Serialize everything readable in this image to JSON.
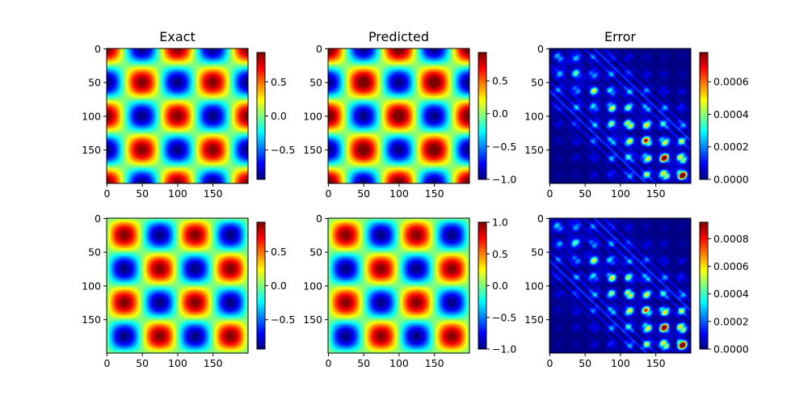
{
  "figure": {
    "colormap": "jet",
    "colormap_stops": [
      "#00007f",
      "#0000ff",
      "#007fff",
      "#00ffff",
      "#7fff7f",
      "#ffff00",
      "#ff7f00",
      "#ff0000",
      "#7f0000"
    ]
  },
  "chart_data": [
    {
      "type": "heatmap",
      "title": "Exact",
      "field": "cos(pi*x/50)*cos(pi*y/50)",
      "grid": [
        200,
        200
      ],
      "xlim": [
        0,
        199
      ],
      "ylim": [
        199,
        0
      ],
      "y_inverted": true,
      "xticks": [
        0,
        50,
        100,
        150
      ],
      "yticks": [
        0,
        50,
        100,
        150
      ],
      "xtick_labels": [
        "0",
        "50",
        "100",
        "150"
      ],
      "ytick_labels": [
        "0",
        "50",
        "100",
        "150"
      ],
      "clim": [
        -0.93,
        0.93
      ],
      "colorbar_ticks": [
        -0.5,
        0.0,
        0.5
      ],
      "colorbar_labels": [
        "−0.5",
        "0.0",
        "0.5"
      ]
    },
    {
      "type": "heatmap",
      "title": "Predicted",
      "field": "cos(pi*x/50)*cos(pi*y/50)",
      "grid": [
        200,
        200
      ],
      "xlim": [
        0,
        199
      ],
      "ylim": [
        199,
        0
      ],
      "y_inverted": true,
      "xticks": [
        0,
        50,
        100,
        150
      ],
      "yticks": [
        0,
        50,
        100,
        150
      ],
      "xtick_labels": [
        "0",
        "50",
        "100",
        "150"
      ],
      "ytick_labels": [
        "0",
        "50",
        "100",
        "150"
      ],
      "clim": [
        -1.0,
        0.93
      ],
      "colorbar_ticks": [
        -1.0,
        -0.5,
        0.0,
        0.5
      ],
      "colorbar_labels": [
        "−1.0",
        "−0.5",
        "0.0",
        "0.5"
      ]
    },
    {
      "type": "heatmap",
      "title": "Error",
      "field": "abs(exact - predicted)",
      "grid": [
        200,
        200
      ],
      "xlim": [
        0,
        199
      ],
      "ylim": [
        199,
        0
      ],
      "y_inverted": true,
      "xticks": [
        0,
        50,
        100,
        150
      ],
      "yticks": [
        0,
        50,
        100,
        150
      ],
      "xtick_labels": [
        "0",
        "50",
        "100",
        "150"
      ],
      "ytick_labels": [
        "0",
        "50",
        "100",
        "150"
      ],
      "clim": [
        0.0,
        0.00078
      ],
      "colorbar_ticks": [
        0.0,
        0.0002,
        0.0004,
        0.0006
      ],
      "colorbar_labels": [
        "0.0000",
        "0.0002",
        "0.0004",
        "0.0006"
      ]
    },
    {
      "type": "heatmap",
      "title": "",
      "field": "sin(pi*x/50)*sin(pi*y/50)",
      "grid": [
        200,
        200
      ],
      "xlim": [
        0,
        199
      ],
      "ylim": [
        199,
        0
      ],
      "y_inverted": true,
      "xticks": [
        0,
        50,
        100,
        150
      ],
      "yticks": [
        0,
        50,
        100,
        150
      ],
      "xtick_labels": [
        "0",
        "50",
        "100",
        "150"
      ],
      "ytick_labels": [
        "0",
        "50",
        "100",
        "150"
      ],
      "clim": [
        -0.93,
        0.93
      ],
      "colorbar_ticks": [
        -0.5,
        0.0,
        0.5
      ],
      "colorbar_labels": [
        "−0.5",
        "0.0",
        "0.5"
      ]
    },
    {
      "type": "heatmap",
      "title": "",
      "field": "sin(pi*x/50)*sin(pi*y/50)",
      "grid": [
        200,
        200
      ],
      "xlim": [
        0,
        199
      ],
      "ylim": [
        199,
        0
      ],
      "y_inverted": true,
      "xticks": [
        0,
        50,
        100,
        150
      ],
      "yticks": [
        0,
        50,
        100,
        150
      ],
      "xtick_labels": [
        "0",
        "50",
        "100",
        "150"
      ],
      "ytick_labels": [
        "0",
        "50",
        "100",
        "150"
      ],
      "clim": [
        -1.0,
        1.0
      ],
      "colorbar_ticks": [
        -1.0,
        -0.5,
        0.0,
        0.5,
        1.0
      ],
      "colorbar_labels": [
        "−1.0",
        "−0.5",
        "0.0",
        "0.5",
        "1.0"
      ]
    },
    {
      "type": "heatmap",
      "title": "",
      "field": "abs(exact - predicted)",
      "grid": [
        200,
        200
      ],
      "xlim": [
        0,
        199
      ],
      "ylim": [
        199,
        0
      ],
      "y_inverted": true,
      "xticks": [
        0,
        50,
        100,
        150
      ],
      "yticks": [
        0,
        50,
        100,
        150
      ],
      "xtick_labels": [
        "0",
        "50",
        "100",
        "150"
      ],
      "ytick_labels": [
        "0",
        "50",
        "100",
        "150"
      ],
      "clim": [
        0.0,
        0.00092
      ],
      "colorbar_ticks": [
        0.0,
        0.0002,
        0.0004,
        0.0006,
        0.0008
      ],
      "colorbar_labels": [
        "0.0000",
        "0.0002",
        "0.0004",
        "0.0006",
        "0.0008"
      ]
    }
  ]
}
